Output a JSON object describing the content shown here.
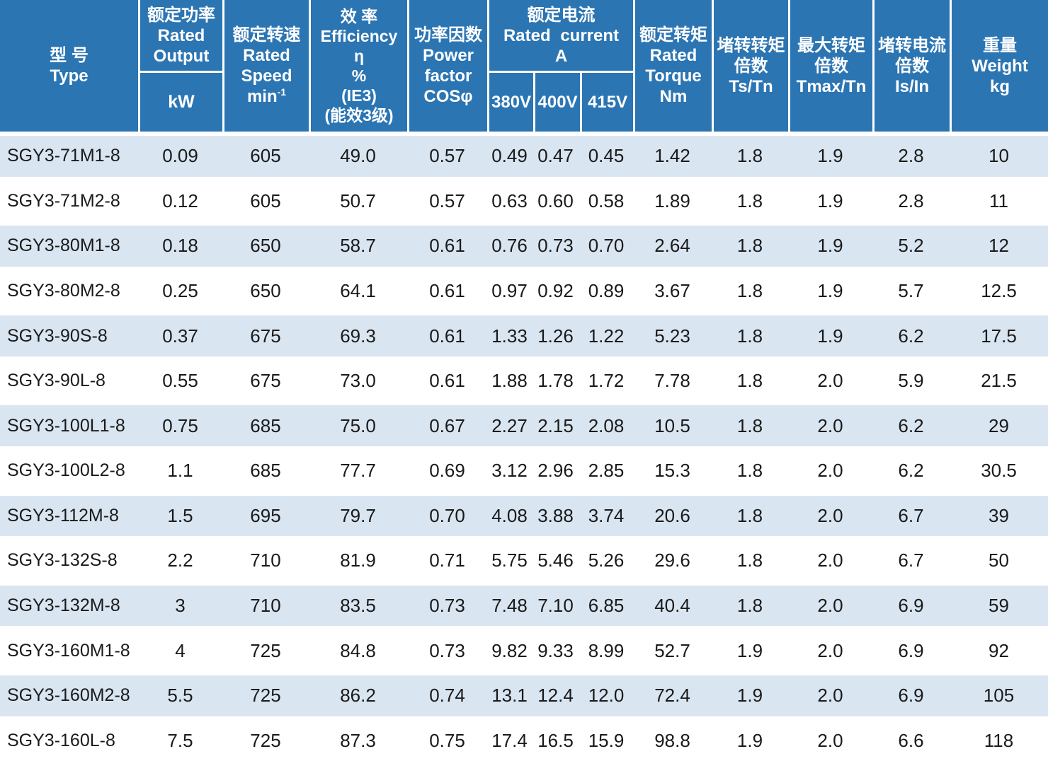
{
  "colors": {
    "header_bg": "#2c75b3",
    "header_text": "#ffffff",
    "stripe_bg": "#d9e5f1",
    "body_text": "#1a1a1a",
    "row_bg": "#ffffff"
  },
  "table": {
    "header": {
      "type": {
        "zh": "型 号",
        "en": "Type"
      },
      "output": {
        "zh": "额定功率",
        "en1": "Rated",
        "en2": "Output",
        "unit": "kW"
      },
      "speed": {
        "zh": "额定转速",
        "en1": "Rated",
        "en2": "Speed",
        "unit": "min",
        "unit_sup": "-1"
      },
      "efficiency": {
        "zh": "效 率",
        "en": "Efficiency",
        "symbol": "η",
        "pct": "%",
        "ie": "(IE3)",
        "grade": "(能效3级)"
      },
      "power_factor": {
        "zh": "功率因数",
        "en1": "Power",
        "en2": "factor",
        "symbol": "COSφ"
      },
      "current": {
        "zh": "额定电流",
        "en": "Rated current",
        "unit": "A",
        "v380": "380V",
        "v400": "400V",
        "v415": "415V"
      },
      "torque": {
        "zh": "额定转矩",
        "en1": "Rated",
        "en2": "Torque",
        "unit": "Nm"
      },
      "ts_tn": {
        "zh1": "堵转转矩",
        "zh2": "倍数",
        "en": "Ts/Tn"
      },
      "tmax_tn": {
        "zh1": "最大转矩",
        "zh2": "倍数",
        "en": "Tmax/Tn"
      },
      "is_in": {
        "zh1": "堵转电流",
        "zh2": "倍数",
        "en": "Is/In"
      },
      "weight": {
        "zh": "重量",
        "en": "Weight",
        "unit": "kg"
      }
    },
    "rows": [
      {
        "type": "SGY3-71M1-8",
        "kw": "0.09",
        "speed": "605",
        "eff": "49.0",
        "cos": "0.57",
        "a380": "0.49",
        "a400": "0.47",
        "a415": "0.45",
        "torque": "1.42",
        "ts_tn": "1.8",
        "tmax_tn": "1.9",
        "is_in": "2.8",
        "weight": "10"
      },
      {
        "type": "SGY3-71M2-8",
        "kw": "0.12",
        "speed": "605",
        "eff": "50.7",
        "cos": "0.57",
        "a380": "0.63",
        "a400": "0.60",
        "a415": "0.58",
        "torque": "1.89",
        "ts_tn": "1.8",
        "tmax_tn": "1.9",
        "is_in": "2.8",
        "weight": "11"
      },
      {
        "type": "SGY3-80M1-8",
        "kw": "0.18",
        "speed": "650",
        "eff": "58.7",
        "cos": "0.61",
        "a380": "0.76",
        "a400": "0.73",
        "a415": "0.70",
        "torque": "2.64",
        "ts_tn": "1.8",
        "tmax_tn": "1.9",
        "is_in": "5.2",
        "weight": "12"
      },
      {
        "type": "SGY3-80M2-8",
        "kw": "0.25",
        "speed": "650",
        "eff": "64.1",
        "cos": "0.61",
        "a380": "0.97",
        "a400": "0.92",
        "a415": "0.89",
        "torque": "3.67",
        "ts_tn": "1.8",
        "tmax_tn": "1.9",
        "is_in": "5.7",
        "weight": "12.5"
      },
      {
        "type": "SGY3-90S-8",
        "kw": "0.37",
        "speed": "675",
        "eff": "69.3",
        "cos": "0.61",
        "a380": "1.33",
        "a400": "1.26",
        "a415": "1.22",
        "torque": "5.23",
        "ts_tn": "1.8",
        "tmax_tn": "1.9",
        "is_in": "6.2",
        "weight": "17.5"
      },
      {
        "type": "SGY3-90L-8",
        "kw": "0.55",
        "speed": "675",
        "eff": "73.0",
        "cos": "0.61",
        "a380": "1.88",
        "a400": "1.78",
        "a415": "1.72",
        "torque": "7.78",
        "ts_tn": "1.8",
        "tmax_tn": "2.0",
        "is_in": "5.9",
        "weight": "21.5"
      },
      {
        "type": "SGY3-100L1-8",
        "kw": "0.75",
        "speed": "685",
        "eff": "75.0",
        "cos": "0.67",
        "a380": "2.27",
        "a400": "2.15",
        "a415": "2.08",
        "torque": "10.5",
        "ts_tn": "1.8",
        "tmax_tn": "2.0",
        "is_in": "6.2",
        "weight": "29"
      },
      {
        "type": "SGY3-100L2-8",
        "kw": "1.1",
        "speed": "685",
        "eff": "77.7",
        "cos": "0.69",
        "a380": "3.12",
        "a400": "2.96",
        "a415": "2.85",
        "torque": "15.3",
        "ts_tn": "1.8",
        "tmax_tn": "2.0",
        "is_in": "6.2",
        "weight": "30.5"
      },
      {
        "type": "SGY3-112M-8",
        "kw": "1.5",
        "speed": "695",
        "eff": "79.7",
        "cos": "0.70",
        "a380": "4.08",
        "a400": "3.88",
        "a415": "3.74",
        "torque": "20.6",
        "ts_tn": "1.8",
        "tmax_tn": "2.0",
        "is_in": "6.7",
        "weight": "39"
      },
      {
        "type": "SGY3-132S-8",
        "kw": "2.2",
        "speed": "710",
        "eff": "81.9",
        "cos": "0.71",
        "a380": "5.75",
        "a400": "5.46",
        "a415": "5.26",
        "torque": "29.6",
        "ts_tn": "1.8",
        "tmax_tn": "2.0",
        "is_in": "6.7",
        "weight": "50"
      },
      {
        "type": "SGY3-132M-8",
        "kw": "3",
        "speed": "710",
        "eff": "83.5",
        "cos": "0.73",
        "a380": "7.48",
        "a400": "7.10",
        "a415": "6.85",
        "torque": "40.4",
        "ts_tn": "1.8",
        "tmax_tn": "2.0",
        "is_in": "6.9",
        "weight": "59"
      },
      {
        "type": "SGY3-160M1-8",
        "kw": "4",
        "speed": "725",
        "eff": "84.8",
        "cos": "0.73",
        "a380": "9.82",
        "a400": "9.33",
        "a415": "8.99",
        "torque": "52.7",
        "ts_tn": "1.9",
        "tmax_tn": "2.0",
        "is_in": "6.9",
        "weight": "92"
      },
      {
        "type": "SGY3-160M2-8",
        "kw": "5.5",
        "speed": "725",
        "eff": "86.2",
        "cos": "0.74",
        "a380": "13.1",
        "a400": "12.4",
        "a415": "12.0",
        "torque": "72.4",
        "ts_tn": "1.9",
        "tmax_tn": "2.0",
        "is_in": "6.9",
        "weight": "105"
      },
      {
        "type": "SGY3-160L-8",
        "kw": "7.5",
        "speed": "725",
        "eff": "87.3",
        "cos": "0.75",
        "a380": "17.4",
        "a400": "16.5",
        "a415": "15.9",
        "torque": "98.8",
        "ts_tn": "1.9",
        "tmax_tn": "2.0",
        "is_in": "6.6",
        "weight": "118"
      }
    ]
  }
}
